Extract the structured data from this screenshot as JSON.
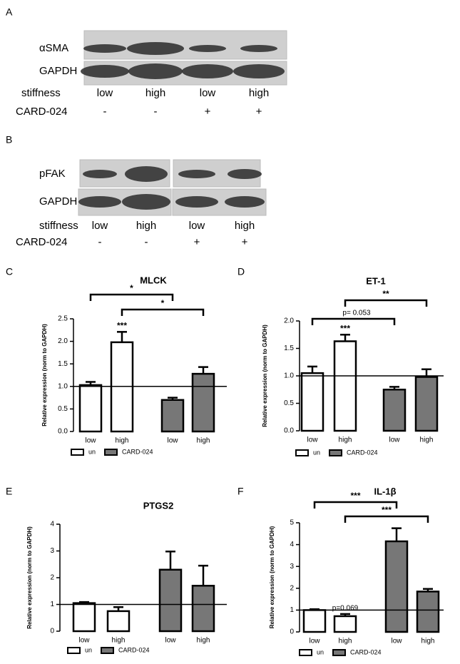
{
  "blots": [
    {
      "letter": "A",
      "rows": [
        "αSMA",
        "GAPDH"
      ],
      "stiffness_label": "stiffness",
      "stiffness": [
        "low",
        "high",
        "low",
        "high"
      ],
      "drug_label": "CARD-024",
      "drug": [
        "-",
        "-",
        "+",
        "+"
      ]
    },
    {
      "letter": "B",
      "rows": [
        "pFAK",
        "GAPDH"
      ],
      "stiffness_label": "stiffness",
      "stiffness": [
        "low",
        "high",
        "low",
        "high"
      ],
      "drug_label": "CARD-024",
      "drug": [
        "-",
        "-",
        "+",
        "+"
      ]
    }
  ],
  "chart_data": [
    {
      "type": "bar",
      "letter": "C",
      "title": "MLCK",
      "y_label": "Relative expression (norm to GAPDH)",
      "categories": [
        "low",
        "high",
        "low",
        "high"
      ],
      "series": [
        {
          "name": "un",
          "color": "#ffffff",
          "values": [
            1.03,
            1.98,
            null,
            null
          ],
          "errors": [
            0.07,
            0.23,
            null,
            null
          ]
        },
        {
          "name": "CARD-024",
          "color": "#777777",
          "values": [
            null,
            null,
            0.7,
            1.28
          ],
          "errors": [
            null,
            null,
            0.05,
            0.15
          ]
        }
      ],
      "ylim": [
        0,
        2.5
      ],
      "yticks": [
        {
          "value": 0,
          "label": "0.0"
        },
        0.5,
        {
          "value": 1,
          "label": "1.0"
        },
        1.5,
        {
          "value": 2,
          "label": "2.0"
        },
        2.5
      ],
      "reference_line": 1,
      "bar_annotations": [
        {
          "bar": 1,
          "label": "***"
        }
      ],
      "brackets": [
        {
          "from": 0,
          "to": 2,
          "label": "*"
        },
        {
          "from": 1,
          "to": 3,
          "label": "*"
        }
      ]
    },
    {
      "type": "bar",
      "letter": "D",
      "title": "ET-1",
      "y_label": "Relative expression (norm to GAPDH)",
      "categories": [
        "low",
        "high",
        "low",
        "high"
      ],
      "series": [
        {
          "name": "un",
          "color": "#ffffff",
          "values": [
            1.05,
            1.63,
            null,
            null
          ],
          "errors": [
            0.12,
            0.12,
            null,
            null
          ]
        },
        {
          "name": "CARD-024",
          "color": "#777777",
          "values": [
            null,
            null,
            0.75,
            0.98
          ],
          "errors": [
            null,
            null,
            0.05,
            0.14
          ]
        }
      ],
      "ylim": [
        0,
        2
      ],
      "yticks": [
        {
          "value": 0,
          "label": "0.0"
        },
        0.5,
        {
          "value": 1,
          "label": "1.0"
        },
        1.5,
        {
          "value": 2,
          "label": "2.0"
        }
      ],
      "reference_line": 1,
      "bar_annotations": [
        {
          "bar": 1,
          "label": "***"
        }
      ],
      "brackets": [
        {
          "from": 1,
          "to": 3,
          "label": "**"
        },
        {
          "from": 0,
          "to": 2,
          "label": "p= 0.053"
        }
      ]
    },
    {
      "type": "bar",
      "letter": "E",
      "title": "PTGS2",
      "y_label": "Relative expression (norm to GAPDH)",
      "categories": [
        "low",
        "high",
        "low",
        "high"
      ],
      "series": [
        {
          "name": "un",
          "color": "#ffffff",
          "values": [
            1.05,
            0.75,
            null,
            null
          ],
          "errors": [
            0.04,
            0.15,
            null,
            null
          ]
        },
        {
          "name": "CARD-024",
          "color": "#777777",
          "values": [
            null,
            null,
            2.3,
            1.7
          ],
          "errors": [
            null,
            null,
            0.68,
            0.75
          ]
        }
      ],
      "ylim": [
        0,
        4
      ],
      "yticks": [
        0,
        1,
        2,
        3,
        4
      ],
      "reference_line": 1,
      "bar_annotations": [],
      "brackets": []
    },
    {
      "type": "bar",
      "letter": "F",
      "title": "IL-1β",
      "y_label": "Relative expression (norm to GAPDH)",
      "categories": [
        "low",
        "high",
        "low",
        "high"
      ],
      "series": [
        {
          "name": "un",
          "color": "#ffffff",
          "values": [
            1.0,
            0.72,
            null,
            null
          ],
          "errors": [
            0.04,
            0.1,
            null,
            null
          ]
        },
        {
          "name": "CARD-024",
          "color": "#777777",
          "values": [
            null,
            null,
            4.15,
            1.85
          ],
          "errors": [
            null,
            null,
            0.6,
            0.12
          ]
        }
      ],
      "ylim": [
        0,
        5
      ],
      "yticks": [
        0,
        1,
        2,
        3,
        4,
        5
      ],
      "reference_line": 1,
      "bar_annotations": [
        {
          "bar": 1,
          "label": "p=0.069"
        }
      ],
      "brackets": [
        {
          "from": 0,
          "to": 2,
          "label": "***"
        },
        {
          "from": 1,
          "to": 3,
          "label": "***"
        }
      ]
    }
  ]
}
